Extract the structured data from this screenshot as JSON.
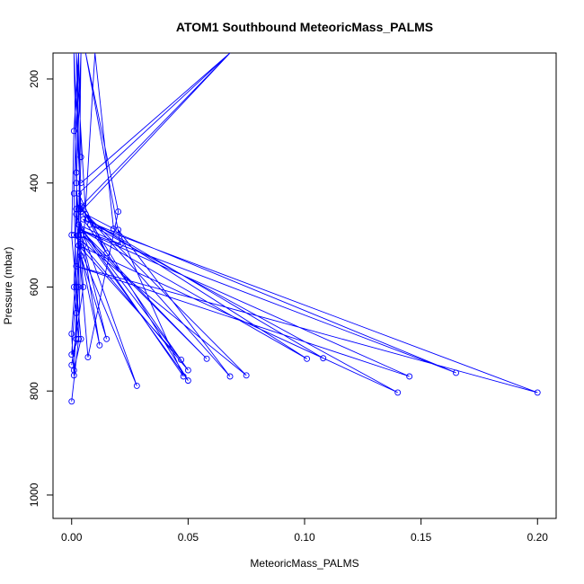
{
  "chart_data": {
    "type": "line",
    "title": "ATOM1 Southbound MeteoricMass_PALMS",
    "xlabel": "MeteoricMass_PALMS",
    "ylabel": "Pressure (mbar)",
    "xlim": [
      -0.008,
      0.208
    ],
    "ylim": [
      1045,
      150
    ],
    "y_reversed": true,
    "x_ticks": [
      0.0,
      0.05,
      0.1,
      0.15,
      0.2
    ],
    "x_tick_labels": [
      "0.00",
      "0.05",
      "0.10",
      "0.15",
      "0.20"
    ],
    "y_ticks": [
      200,
      400,
      600,
      800,
      1000
    ],
    "y_tick_labels": [
      "200",
      "400",
      "600",
      "800",
      "1000"
    ],
    "grid": false,
    "color": "#0000ff",
    "series": [
      {
        "values": [
          [
            0.0,
            820
          ],
          [
            0.003,
            700
          ],
          [
            0.001,
            600
          ],
          [
            0.002,
            450
          ],
          [
            0.003,
            150
          ],
          [
            0.001,
            300
          ],
          [
            0.0,
            500
          ],
          [
            0.004,
            700
          ],
          [
            0.001,
            760
          ],
          [
            0.003,
            600
          ],
          [
            0.002,
            380
          ],
          [
            0.001,
            150
          ],
          [
            0.004,
            450
          ],
          [
            0.002,
            700
          ],
          [
            0.0,
            750
          ],
          [
            0.005,
            600
          ],
          [
            0.002,
            400
          ],
          [
            0.004,
            150
          ],
          [
            0.003,
            500
          ],
          [
            0.0,
            690
          ],
          [
            0.001,
            770
          ],
          [
            0.002,
            650
          ],
          [
            0.004,
            350
          ],
          [
            0.003,
            150
          ],
          [
            0.001,
            420
          ],
          [
            0.002,
            600
          ],
          [
            0.0,
            730
          ],
          [
            0.003,
            700
          ],
          [
            0.004,
            500
          ],
          [
            0.002,
            150
          ],
          [
            0.006,
            460
          ],
          [
            0.018,
            488
          ],
          [
            0.01,
            150
          ],
          [
            0.005,
            520
          ],
          [
            0.012,
            712
          ],
          [
            0.004,
            540
          ],
          [
            0.015,
            700
          ],
          [
            0.003,
            480
          ],
          [
            0.021,
            518
          ],
          [
            0.006,
            150
          ],
          [
            0.02,
            455
          ],
          [
            0.007,
            735
          ],
          [
            0.002,
            460
          ],
          [
            0.028,
            790
          ],
          [
            0.003,
            520
          ],
          [
            0.047,
            740
          ],
          [
            0.003,
            480
          ],
          [
            0.048,
            772
          ],
          [
            0.02,
            490
          ],
          [
            0.068,
            772
          ],
          [
            0.004,
            450
          ],
          [
            0.075,
            770
          ],
          [
            0.001,
            500
          ],
          [
            0.05,
            760
          ],
          [
            0.005,
            470
          ],
          [
            0.165,
            765
          ],
          [
            0.004,
            490
          ],
          [
            0.145,
            772
          ],
          [
            0.002,
            560
          ],
          [
            0.2,
            803
          ],
          [
            0.008,
            480
          ],
          [
            0.14,
            803
          ],
          [
            0.003,
            520
          ],
          [
            0.108,
            737
          ],
          [
            0.007,
            470
          ],
          [
            0.101,
            738
          ],
          [
            0.004,
            490
          ],
          [
            0.058,
            738
          ],
          [
            0.005,
            500
          ],
          [
            0.05,
            780
          ],
          [
            0.004,
            445
          ],
          [
            0.015,
            535
          ],
          [
            0.003,
            420
          ],
          [
            0.068,
            150
          ],
          [
            0.003,
            450
          ],
          [
            0.068,
            150
          ],
          [
            0.004,
            455
          ],
          [
            0.068,
            150
          ],
          [
            0.004,
            400
          ],
          [
            0.068,
            150
          ]
        ]
      }
    ]
  }
}
